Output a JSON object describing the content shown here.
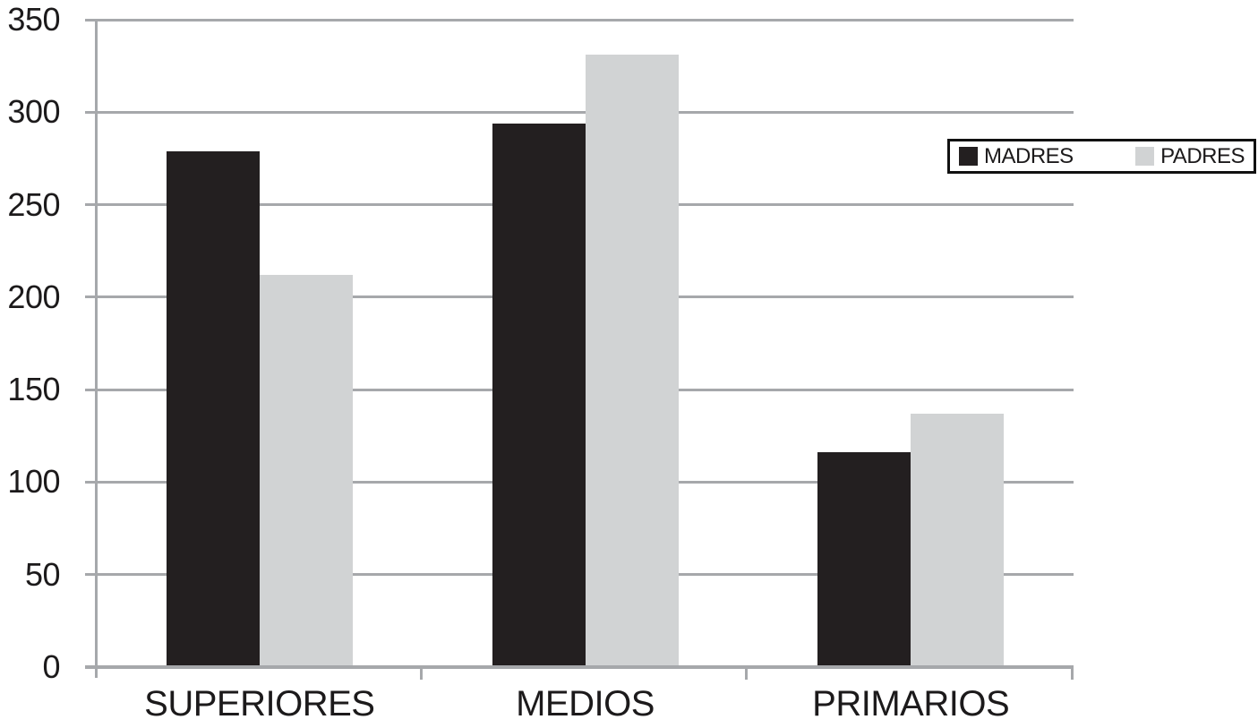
{
  "chart_data": {
    "type": "bar",
    "title": "",
    "categories": [
      "SUPERIORES",
      "MEDIOS",
      "PRIMARIOS"
    ],
    "series": [
      {
        "name": "MADRES",
        "color": "#231f20",
        "values": [
          279,
          294,
          116
        ]
      },
      {
        "name": "PADRES",
        "color": "#d1d3d4",
        "values": [
          212,
          331,
          137
        ]
      }
    ],
    "ylim": [
      0,
      350
    ],
    "yticks": [
      0,
      50,
      100,
      150,
      200,
      250,
      300,
      350
    ],
    "grid": true,
    "legend_position": "top-right",
    "legend_boxed": true,
    "gridline_color": "#a6a8ab",
    "axis_color": "#a6a8ab",
    "text_color": "#1c1a1b",
    "background": "#ffffff"
  }
}
